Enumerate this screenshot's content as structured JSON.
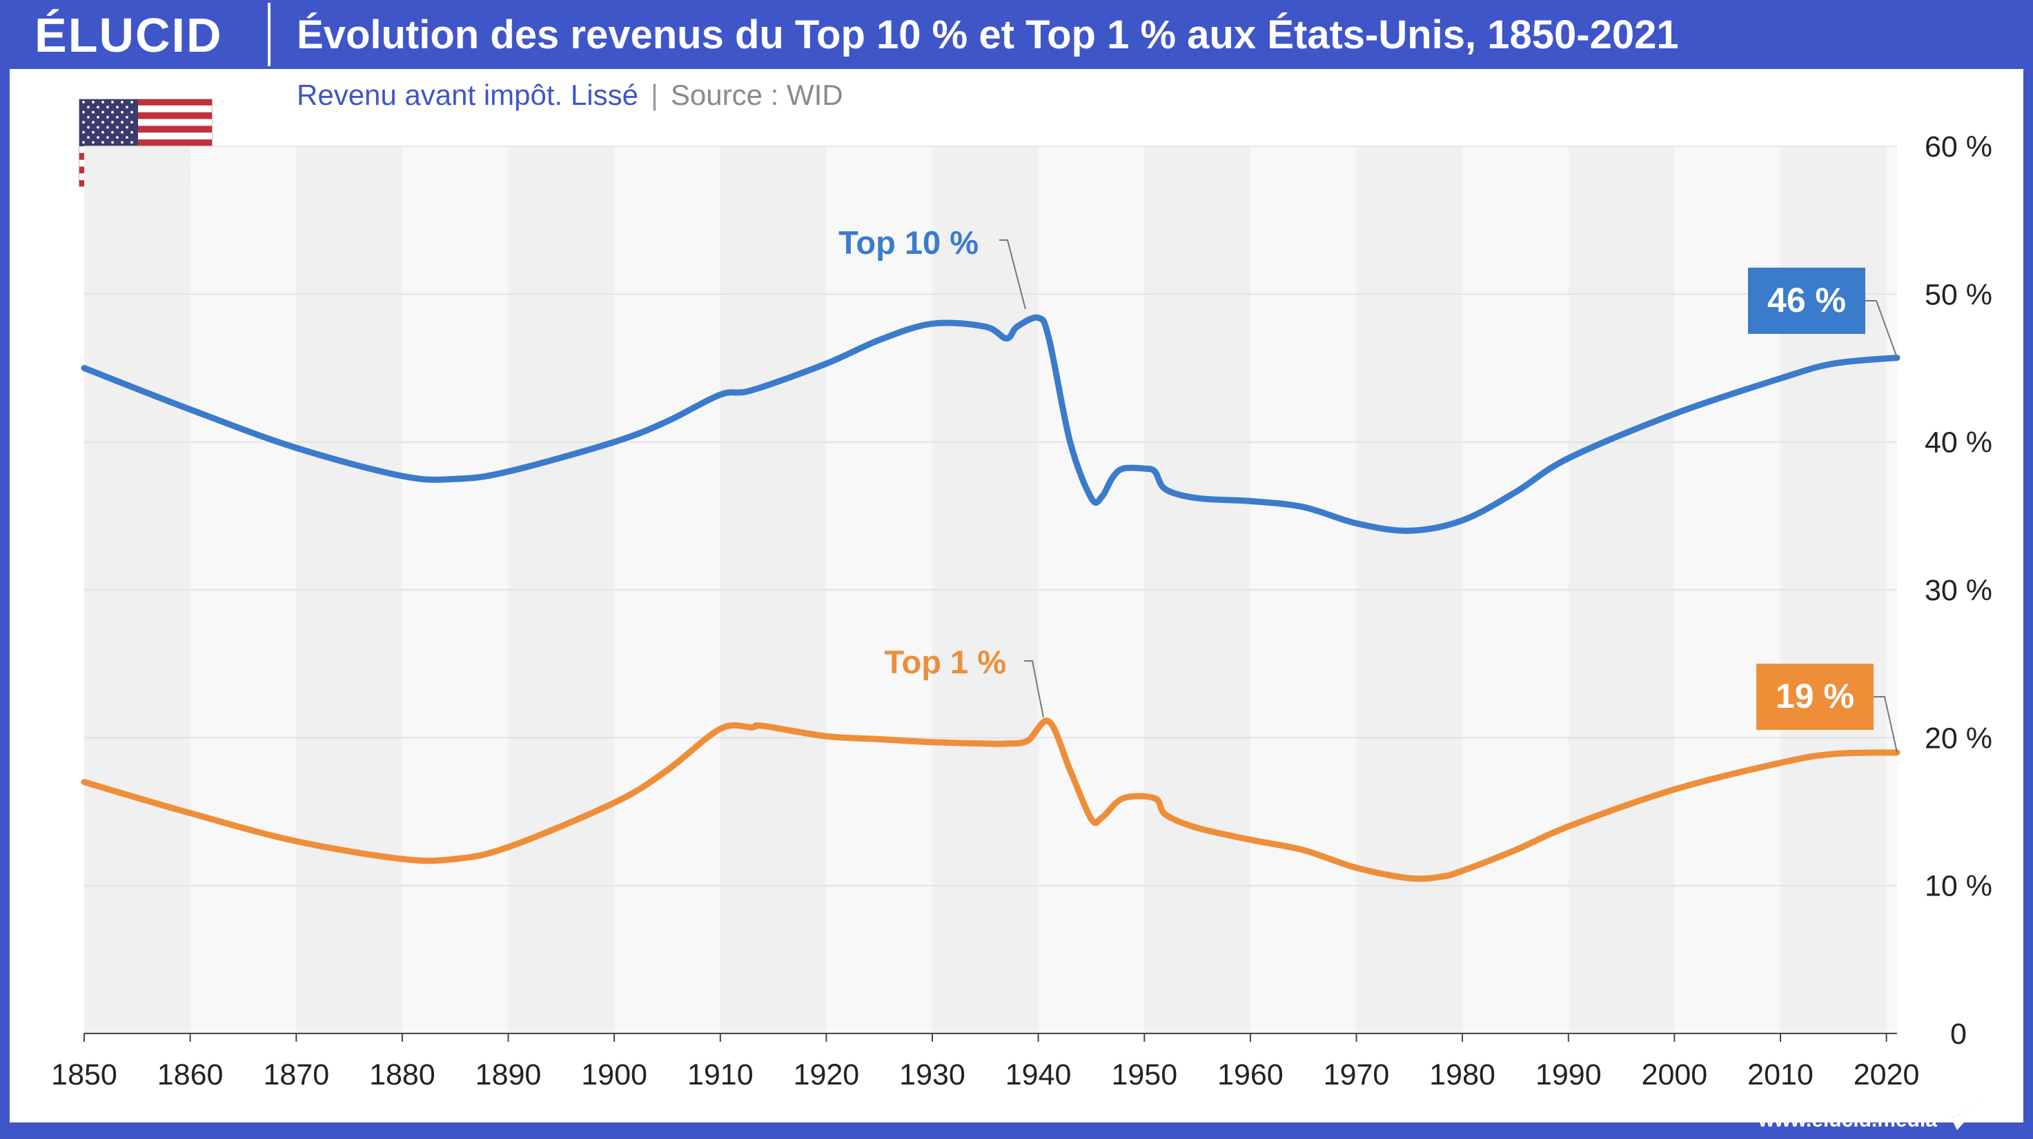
{
  "header": {
    "logo": "ÉLUCID",
    "title": "Évolution des revenus du Top 10 % et Top 1 % aux États-Unis, 1850-2021"
  },
  "subtitle": {
    "text": "Revenu avant impôt. Lissé",
    "separator": "|",
    "source": "Source : WID"
  },
  "footer": {
    "url": "www.elucid.media"
  },
  "colors": {
    "brand": "#3f56c8",
    "top10": "#3a7bcc",
    "top1": "#ee8e39"
  },
  "icons": {
    "flag": "us-flag-icon",
    "footer": "paper-plane-icon"
  },
  "chart_data": {
    "type": "line",
    "title": "Évolution des revenus du Top 10 % et Top 1 % aux États-Unis, 1850-2021",
    "subtitle": "Revenu avant impôt. Lissé",
    "xlabel": "",
    "ylabel": "",
    "xlim": [
      1850,
      2021
    ],
    "ylim": [
      0,
      60
    ],
    "x_ticks": [
      1850,
      1860,
      1870,
      1880,
      1890,
      1900,
      1910,
      1920,
      1930,
      1940,
      1950,
      1960,
      1970,
      1980,
      1990,
      2000,
      2010,
      2020
    ],
    "y_ticks": [
      0,
      10,
      20,
      30,
      40,
      50,
      60
    ],
    "y_tick_labels": [
      "0",
      "10 %",
      "20 %",
      "30 %",
      "40 %",
      "50 %",
      "60 %"
    ],
    "grid": "horizontal",
    "background_bands": "alternating by decade",
    "series": [
      {
        "name": "Top 10 %",
        "color": "#3a7bcc",
        "end_label": "46 %",
        "x": [
          1850,
          1860,
          1870,
          1880,
          1885,
          1890,
          1900,
          1905,
          1910,
          1913,
          1920,
          1925,
          1930,
          1935,
          1937,
          1938,
          1940,
          1941,
          1943,
          1945,
          1946,
          1947,
          1948,
          1950,
          1951,
          1952,
          1955,
          1960,
          1965,
          1970,
          1975,
          1980,
          1985,
          1990,
          2000,
          2010,
          2015,
          2021
        ],
        "y": [
          45,
          42.2,
          39.6,
          37.7,
          37.5,
          38,
          40,
          41.4,
          43.2,
          43.5,
          45.3,
          46.9,
          48,
          47.8,
          47,
          47.8,
          48.4,
          47,
          40,
          36.2,
          36.3,
          37.6,
          38.2,
          38.2,
          38,
          36.8,
          36.2,
          36,
          35.6,
          34.5,
          34,
          34.7,
          36.6,
          38.9,
          41.9,
          44.3,
          45.3,
          45.7
        ]
      },
      {
        "name": "Top 1 %",
        "color": "#ee8e39",
        "end_label": "19 %",
        "x": [
          1850,
          1860,
          1870,
          1880,
          1885,
          1890,
          1900,
          1905,
          1910,
          1913,
          1914,
          1920,
          1925,
          1930,
          1935,
          1937,
          1939,
          1941,
          1943,
          1945,
          1946,
          1948,
          1951,
          1952,
          1955,
          1960,
          1965,
          1970,
          1975,
          1978,
          1980,
          1985,
          1990,
          2000,
          2010,
          2015,
          2021
        ],
        "y": [
          17,
          14.9,
          13,
          11.8,
          11.8,
          12.6,
          15.6,
          17.8,
          20.6,
          20.7,
          20.8,
          20.1,
          19.9,
          19.7,
          19.6,
          19.6,
          19.8,
          21.1,
          17.8,
          14.5,
          14.6,
          15.9,
          15.9,
          14.8,
          13.9,
          13.1,
          12.4,
          11.2,
          10.5,
          10.6,
          11,
          12.4,
          14,
          16.5,
          18.3,
          18.9,
          19
        ]
      }
    ]
  }
}
